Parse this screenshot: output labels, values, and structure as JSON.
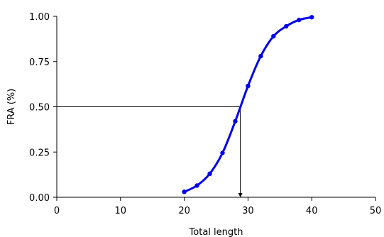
{
  "chart_data": {
    "type": "line",
    "xlabel": "Total length",
    "ylabel": "FRA (%)",
    "xlim": [
      0,
      50
    ],
    "ylim": [
      0,
      1
    ],
    "x_ticks": [
      "0",
      "10",
      "20",
      "30",
      "40",
      "50"
    ],
    "y_ticks": [
      "0.00",
      "0.25",
      "0.50",
      "0.75",
      "1.00"
    ],
    "grid": false,
    "legend": "none",
    "series": [
      {
        "color": "#0000ee",
        "x": [
          20,
          22,
          24,
          26,
          28,
          30,
          32,
          34,
          36,
          38,
          40
        ],
        "y": [
          0.03,
          0.065,
          0.13,
          0.245,
          0.42,
          0.615,
          0.78,
          0.89,
          0.945,
          0.98,
          0.995
        ]
      }
    ],
    "reference_point": {
      "x": 28.8,
      "y": 0.5
    }
  }
}
